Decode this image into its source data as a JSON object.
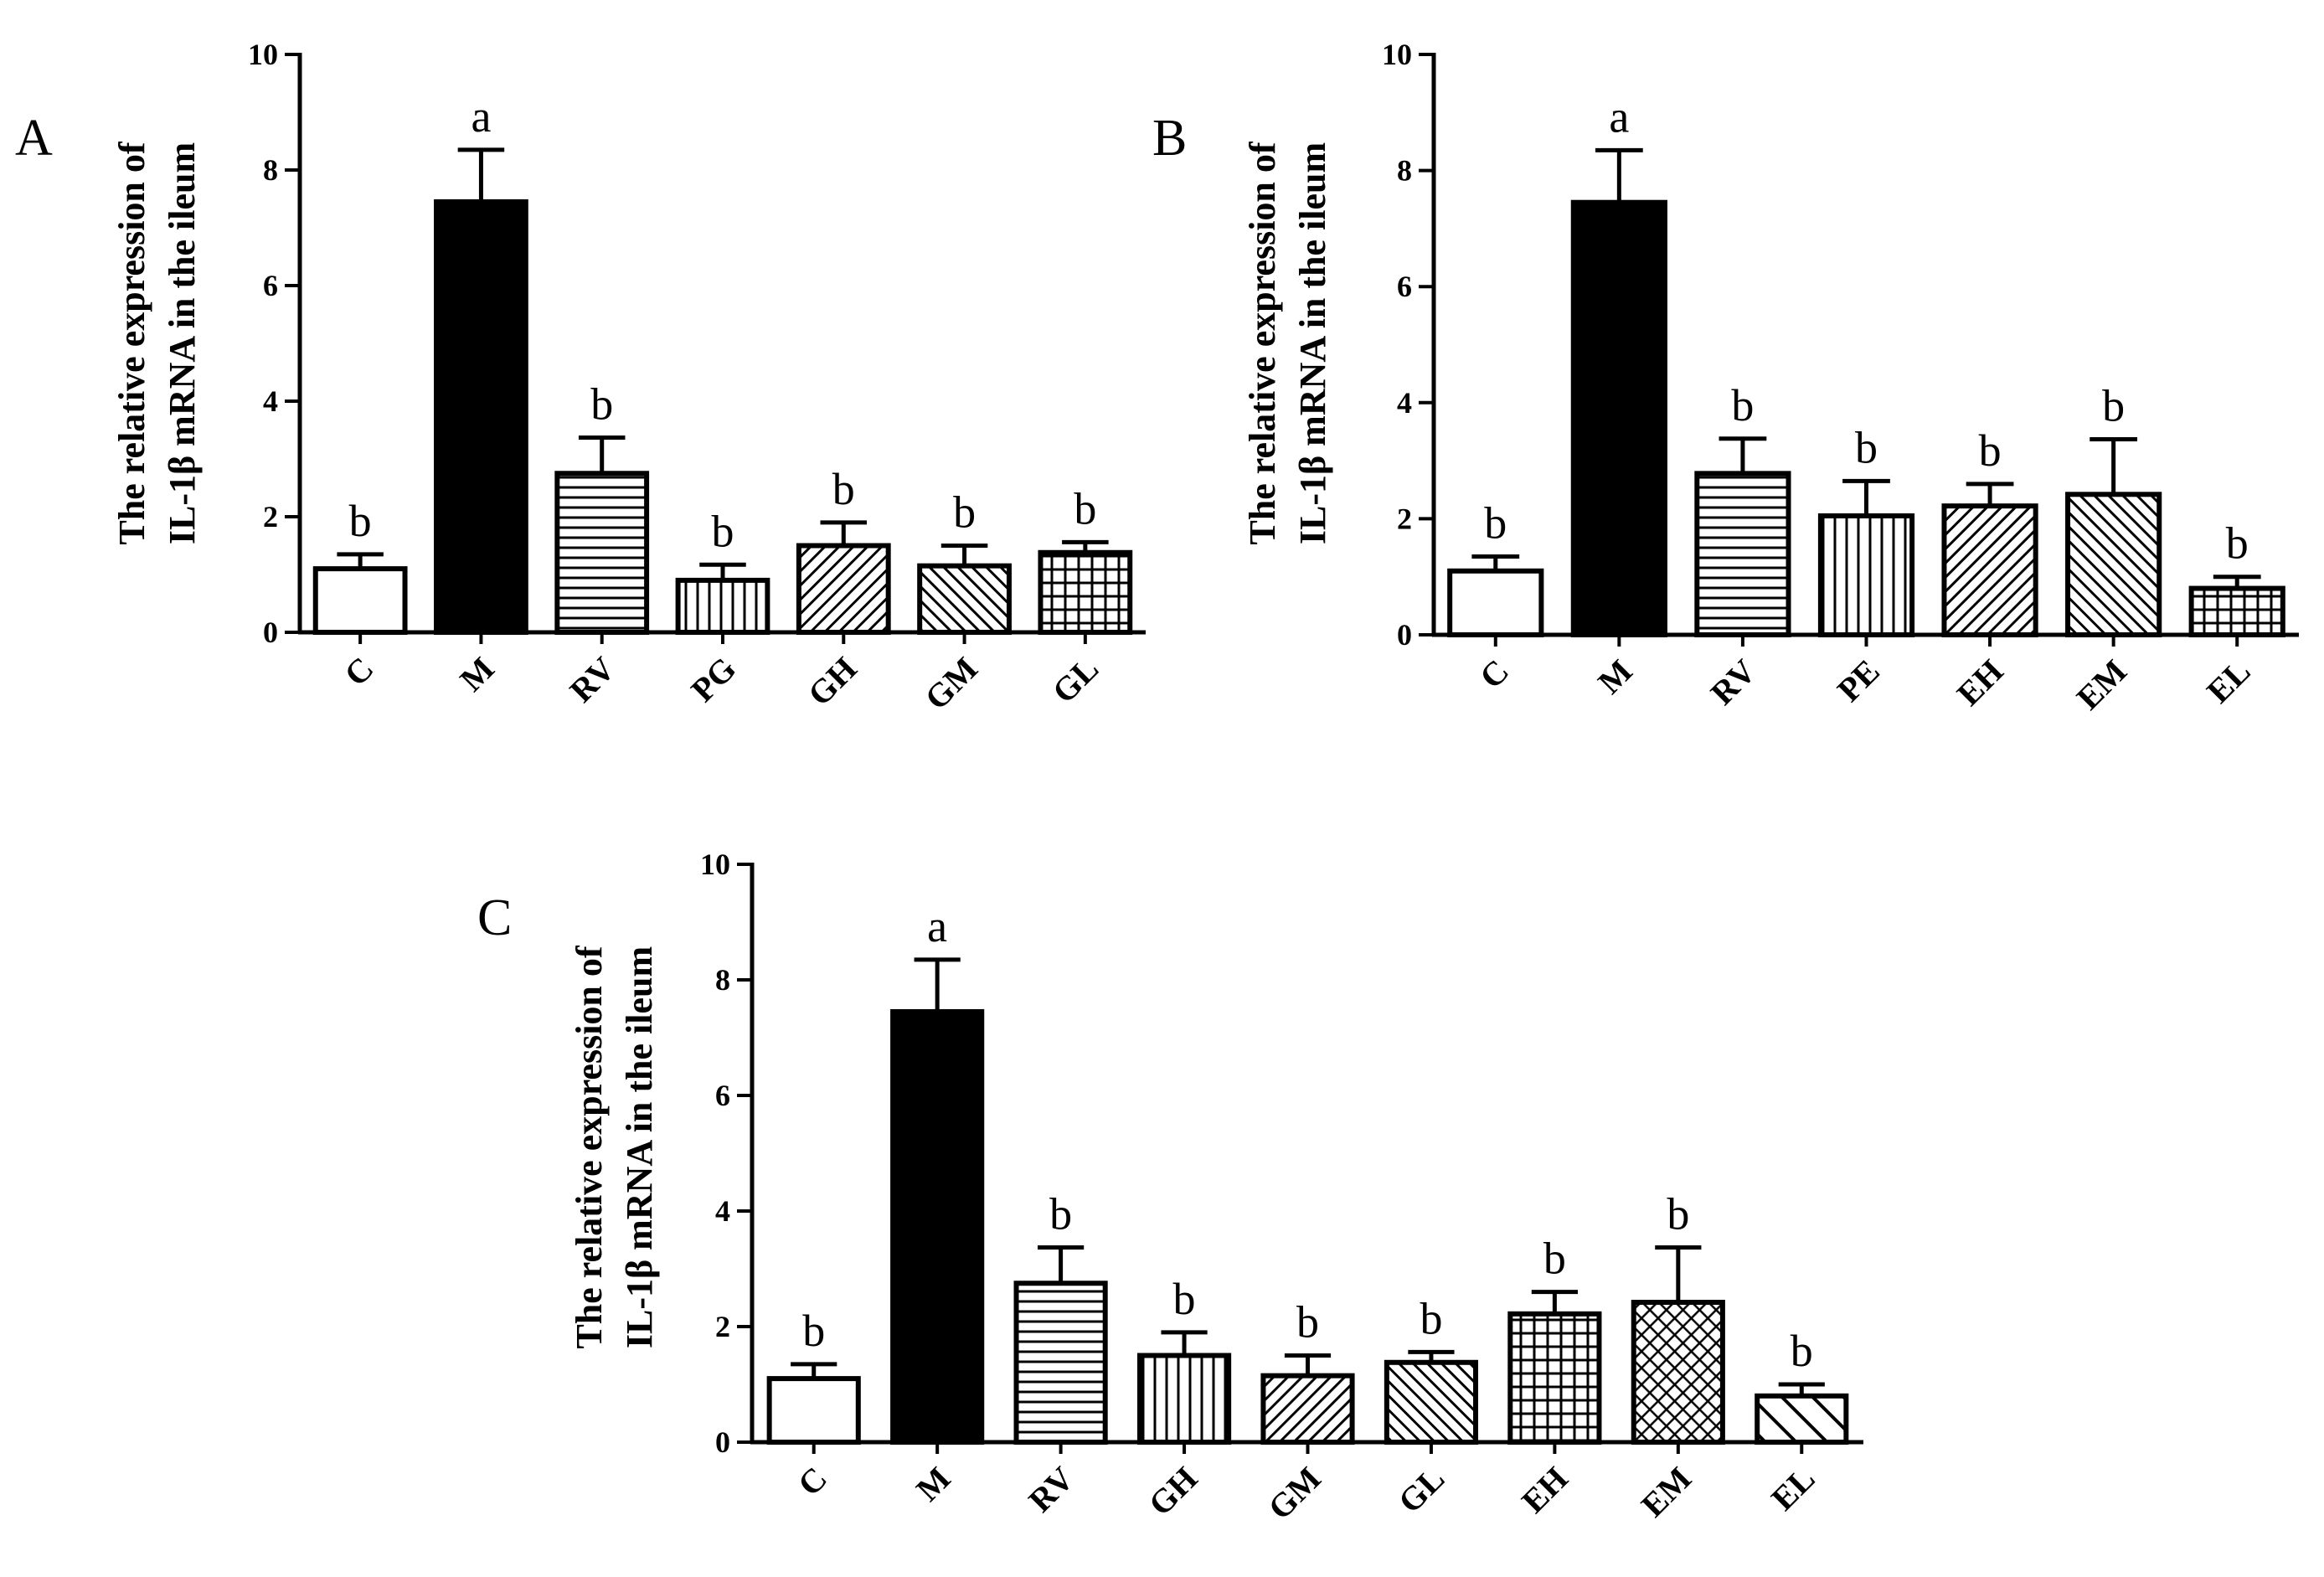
{
  "chart_data": [
    {
      "type": "bar",
      "panel": "A",
      "ylabel_line1": "The relative expression of",
      "ylabel_line2": "IL-1β  mRNA in the ileum",
      "ylim": [
        0,
        10
      ],
      "yticks": [
        "0",
        "2",
        "4",
        "6",
        "8",
        "10"
      ],
      "categories": [
        "C",
        "M",
        "RV",
        "PG",
        "GH",
        "GM",
        "GL"
      ],
      "values": [
        1.1,
        7.45,
        2.75,
        0.9,
        1.5,
        1.15,
        1.38
      ],
      "errors": [
        0.25,
        0.9,
        0.62,
        0.27,
        0.4,
        0.35,
        0.18
      ],
      "significance": [
        "b",
        "a",
        "b",
        "b",
        "b",
        "b",
        "b"
      ],
      "patterns": [
        "white",
        "black",
        "hlines",
        "vlines",
        "diag-right",
        "diag-left",
        "grid"
      ]
    },
    {
      "type": "bar",
      "panel": "B",
      "ylabel_line1": "The relative expression of",
      "ylabel_line2": "IL-1β  mRNA in the ileum",
      "ylim": [
        0,
        10
      ],
      "yticks": [
        "0",
        "2",
        "4",
        "6",
        "8",
        "10"
      ],
      "categories": [
        "C",
        "M",
        "RV",
        "PE",
        "EH",
        "EM",
        "EL"
      ],
      "values": [
        1.1,
        7.45,
        2.78,
        2.05,
        2.22,
        2.42,
        0.8
      ],
      "errors": [
        0.25,
        0.9,
        0.6,
        0.6,
        0.38,
        0.95,
        0.2
      ],
      "significance": [
        "b",
        "a",
        "b",
        "b",
        "b",
        "b",
        "b"
      ],
      "patterns": [
        "white",
        "black",
        "hlines",
        "vlines",
        "diag-right",
        "diag-left",
        "grid"
      ]
    },
    {
      "type": "bar",
      "panel": "C",
      "ylabel_line1": "The relative expression of",
      "ylabel_line2": "IL-1β  mRNA in the ileum",
      "ylim": [
        0,
        10
      ],
      "yticks": [
        "0",
        "2",
        "4",
        "6",
        "8",
        "10"
      ],
      "categories": [
        "C",
        "M",
        "RV",
        "GH",
        "GM",
        "GL",
        "EH",
        "EM",
        "EL"
      ],
      "values": [
        1.1,
        7.45,
        2.75,
        1.5,
        1.15,
        1.38,
        2.22,
        2.42,
        0.8
      ],
      "errors": [
        0.25,
        0.9,
        0.62,
        0.4,
        0.35,
        0.18,
        0.38,
        0.95,
        0.2
      ],
      "significance": [
        "b",
        "a",
        "b",
        "b",
        "b",
        "b",
        "b",
        "b",
        "b"
      ],
      "patterns": [
        "white",
        "black",
        "hlines",
        "vlines",
        "diag-right",
        "diag-left",
        "grid",
        "crosshatch",
        "wide-diag-left"
      ]
    }
  ]
}
